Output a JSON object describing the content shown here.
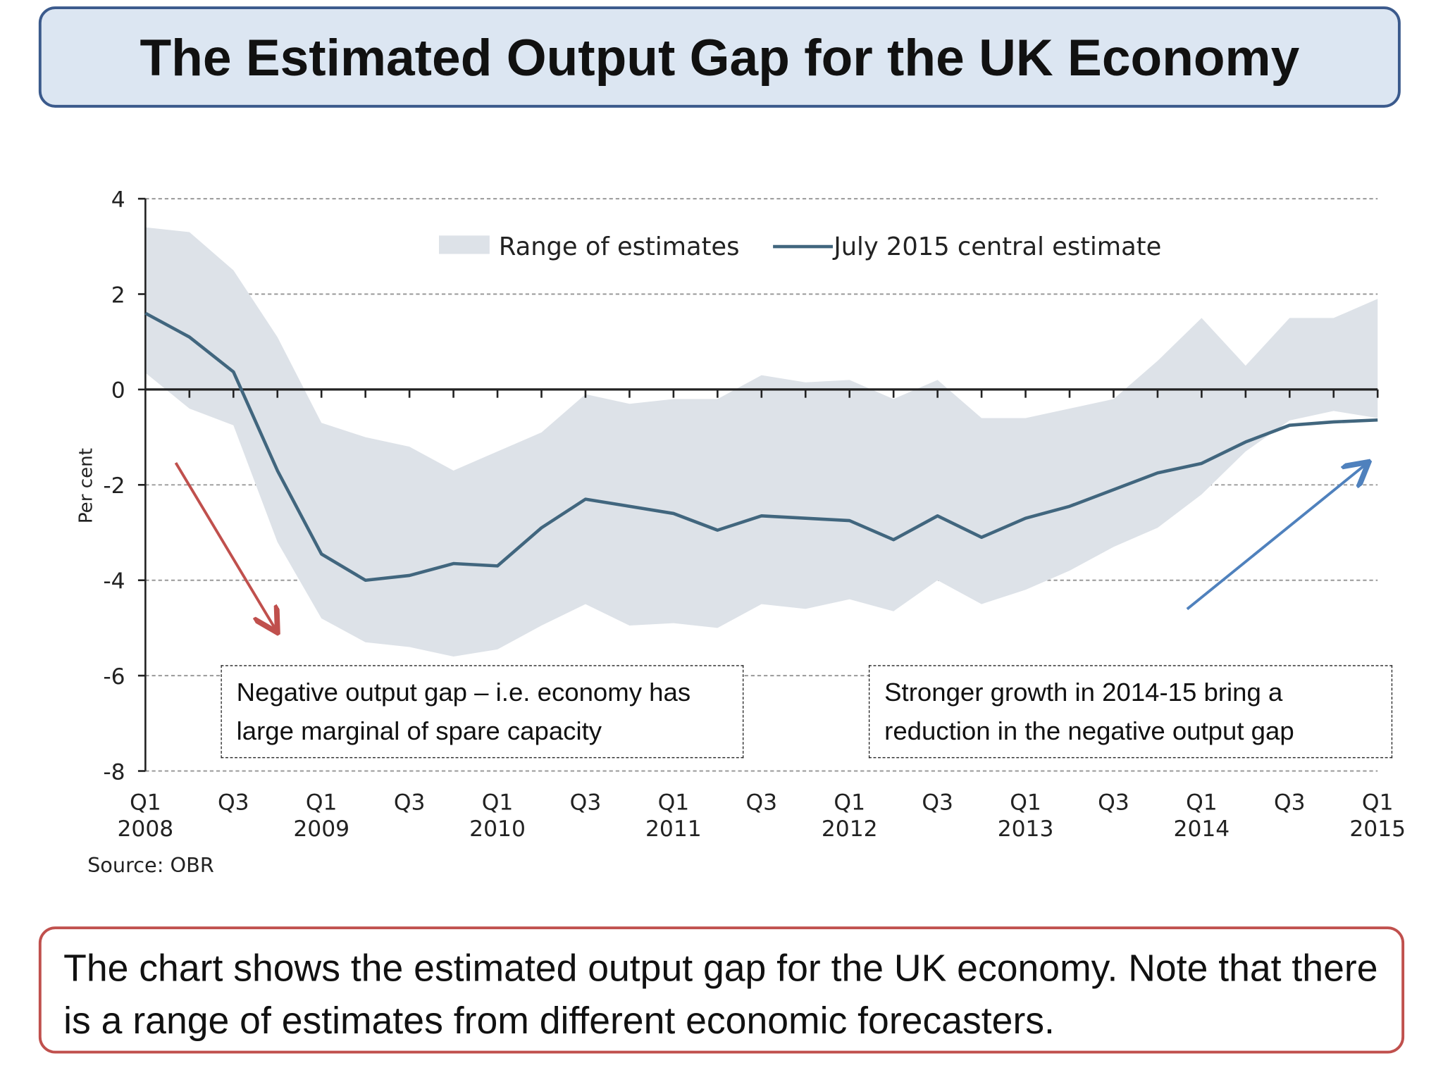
{
  "title": "The Estimated Output Gap for the UK Economy",
  "caption": "The chart shows the estimated output gap for the UK economy. Note that there is a range of estimates from different economic forecasters.",
  "annotations": {
    "left": "Negative output gap – i.e. economy has large marginal of spare capacity",
    "right": "Stronger growth in 2014-15 bring a reduction in the negative output gap",
    "left_arrow_color": "#c0504d",
    "right_arrow_color": "#4f81bd"
  },
  "source": "Source: OBR",
  "chart_data": {
    "type": "line",
    "ylabel": "Per cent",
    "ylim": [
      -8,
      4
    ],
    "yticks": [
      4,
      2,
      0,
      -2,
      -4,
      -6,
      -8
    ],
    "grid": true,
    "legend_position": "top",
    "x_tick_labels": [
      {
        "q": "Q1",
        "year": "2008"
      },
      {
        "q": "Q3",
        "year": ""
      },
      {
        "q": "Q1",
        "year": "2009"
      },
      {
        "q": "Q3",
        "year": ""
      },
      {
        "q": "Q1",
        "year": "2010"
      },
      {
        "q": "Q3",
        "year": ""
      },
      {
        "q": "Q1",
        "year": "2011"
      },
      {
        "q": "Q3",
        "year": ""
      },
      {
        "q": "Q1",
        "year": "2012"
      },
      {
        "q": "Q3",
        "year": ""
      },
      {
        "q": "Q1",
        "year": "2013"
      },
      {
        "q": "Q3",
        "year": ""
      },
      {
        "q": "Q1",
        "year": "2014"
      },
      {
        "q": "Q3",
        "year": ""
      },
      {
        "q": "Q1",
        "year": "2015"
      }
    ],
    "quarters": [
      "2008Q1",
      "2008Q2",
      "2008Q3",
      "2008Q4",
      "2009Q1",
      "2009Q2",
      "2009Q3",
      "2009Q4",
      "2010Q1",
      "2010Q2",
      "2010Q3",
      "2010Q4",
      "2011Q1",
      "2011Q2",
      "2011Q3",
      "2011Q4",
      "2012Q1",
      "2012Q2",
      "2012Q3",
      "2012Q4",
      "2013Q1",
      "2013Q2",
      "2013Q3",
      "2013Q4",
      "2014Q1",
      "2014Q2",
      "2014Q3",
      "2014Q4",
      "2015Q1"
    ],
    "series": [
      {
        "name": "Range of estimates",
        "type": "area",
        "color": "#dde2e8",
        "upper": [
          3.4,
          3.3,
          2.5,
          1.1,
          -0.7,
          -1.0,
          -1.2,
          -1.7,
          -1.3,
          -0.9,
          -0.1,
          -0.3,
          -0.2,
          -0.2,
          0.3,
          0.15,
          0.2,
          -0.2,
          0.2,
          -0.6,
          -0.6,
          -0.4,
          -0.2,
          0.6,
          1.5,
          0.5,
          1.5,
          1.5,
          1.9
        ],
        "lower": [
          0.35,
          -0.4,
          -0.75,
          -3.2,
          -4.8,
          -5.3,
          -5.4,
          -5.6,
          -5.45,
          -4.95,
          -4.5,
          -4.95,
          -4.9,
          -5.0,
          -4.5,
          -4.6,
          -4.4,
          -4.65,
          -4.0,
          -4.5,
          -4.2,
          -3.8,
          -3.3,
          -2.9,
          -2.2,
          -1.3,
          -0.65,
          -0.45,
          -0.6
        ]
      },
      {
        "name": "July 2015 central estimate",
        "type": "line",
        "color": "#41667e",
        "values": [
          1.6,
          1.1,
          0.37,
          -1.7,
          -3.45,
          -4.0,
          -3.9,
          -3.65,
          -3.7,
          -2.9,
          -2.3,
          -2.45,
          -2.6,
          -2.95,
          -2.65,
          -2.7,
          -2.75,
          -3.15,
          -2.65,
          -3.1,
          -2.7,
          -2.45,
          -2.1,
          -1.75,
          -1.55,
          -1.1,
          -0.75,
          -0.68,
          -0.64
        ]
      }
    ]
  }
}
